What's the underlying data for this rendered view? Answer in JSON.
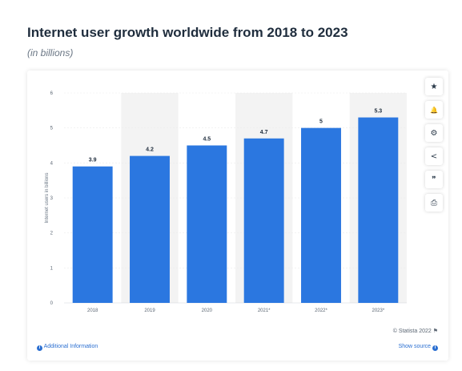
{
  "header": {
    "title": "Internet user growth worldwide from 2018 to 2023",
    "subtitle": "(in billions)"
  },
  "toolbar": {
    "icons": [
      "star-icon",
      "bell-icon",
      "gear-icon",
      "share-icon",
      "quote-icon",
      "print-icon"
    ],
    "glyphs": [
      "★",
      "🔔",
      "⚙",
      "<",
      "❞",
      "⎙"
    ]
  },
  "footer": {
    "copyright": "© Statista 2022",
    "additional_info": "Additional Information",
    "show_source": "Show source"
  },
  "chart_data": {
    "type": "bar",
    "categories": [
      "2018",
      "2019",
      "2020",
      "2021*",
      "2022*",
      "2023*"
    ],
    "values": [
      3.9,
      4.2,
      4.5,
      4.7,
      5,
      5.3
    ],
    "value_labels": [
      "3.9",
      "4.2",
      "4.5",
      "4.7",
      "5",
      "5.3"
    ],
    "title": "Internet user growth worldwide from 2018 to 2023",
    "subtitle": "(in billions)",
    "xlabel": "",
    "ylabel": "Internet users in billions",
    "ylim": [
      0,
      6
    ],
    "yticks": [
      0,
      1,
      2,
      3,
      4,
      5,
      6
    ],
    "bar_color": "#2b77e0",
    "forecast_band_color": "#f3f3f3",
    "grid": true,
    "legend": "none"
  }
}
